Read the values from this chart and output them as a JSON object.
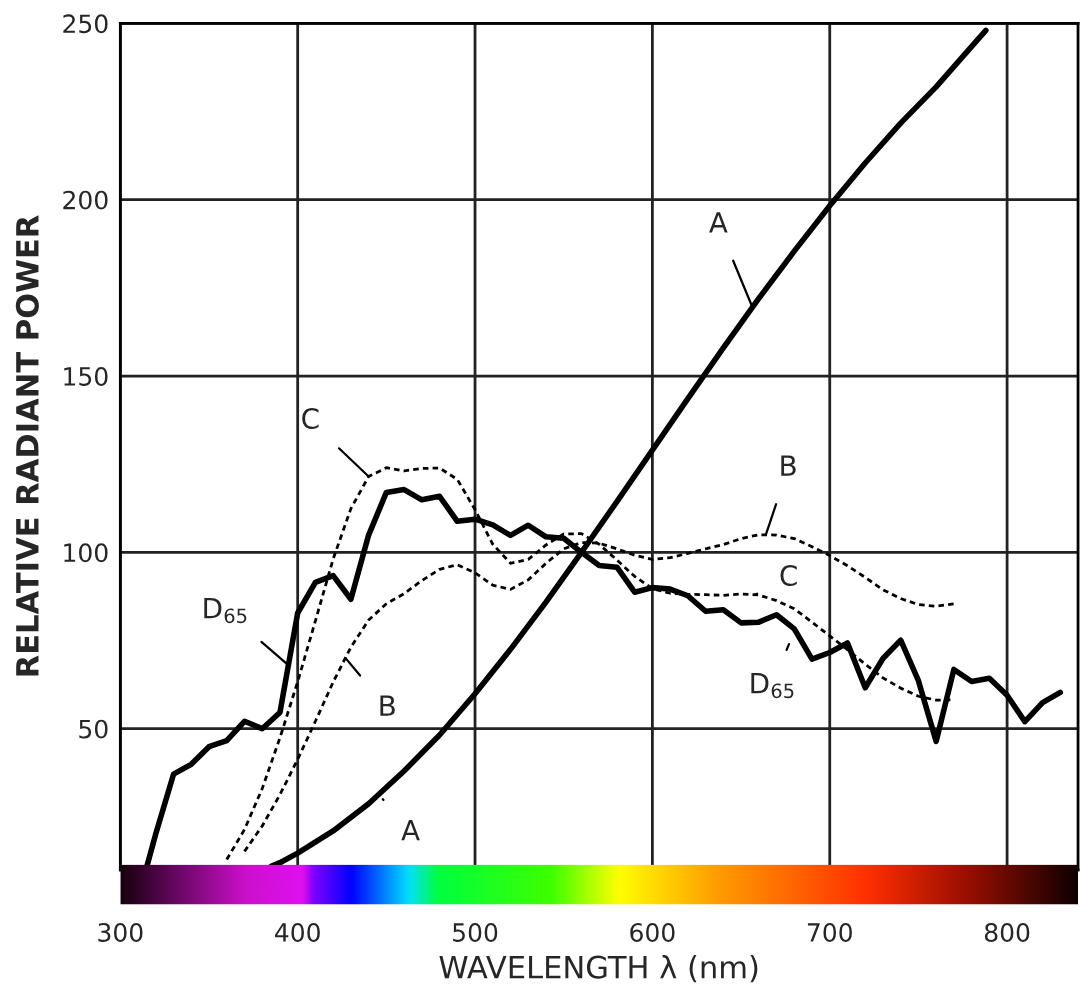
{
  "chart_data": {
    "type": "line",
    "xlabel": "WAVELENGTH λ (nm)",
    "ylabel": "RELATIVE RADIANT POWER",
    "xlim": [
      300,
      840
    ],
    "ylim": [
      10,
      250
    ],
    "xticks": [
      300,
      400,
      500,
      600,
      700,
      800
    ],
    "yticks": [
      50,
      100,
      150,
      200,
      250
    ],
    "grid": true,
    "legend": false,
    "marker": "none",
    "series": [
      {
        "color": "#000000",
        "line_style": "solid",
        "x": [
          385,
          390,
          400,
          420,
          440,
          460,
          480,
          500,
          520,
          540,
          560,
          580,
          600,
          620,
          640,
          660,
          680,
          700,
          720,
          740,
          760,
          788
        ],
        "values": [
          11,
          12,
          14.7,
          21,
          28.7,
          38,
          48.2,
          59.9,
          72.5,
          85.9,
          100,
          114.4,
          129,
          143.6,
          158,
          172,
          185.4,
          198.3,
          210.4,
          221.7,
          232,
          248
        ]
      },
      {
        "color": "#000000",
        "line_style": "dashed",
        "x": [
          370,
          380,
          390,
          400,
          410,
          420,
          430,
          440,
          450,
          460,
          470,
          480,
          490,
          500,
          510,
          520,
          530,
          540,
          550,
          560,
          570,
          580,
          590,
          600,
          610,
          620,
          630,
          640,
          650,
          660,
          670,
          680,
          690,
          700,
          710,
          720,
          730,
          740,
          750,
          760,
          770
        ],
        "values": [
          15.2,
          22.4,
          31.3,
          41.3,
          52.1,
          63.2,
          73.1,
          80.8,
          85.4,
          88.3,
          92,
          95.2,
          96.5,
          94.2,
          90.7,
          89.5,
          92.2,
          96.9,
          101,
          102.8,
          102.6,
          101,
          99.2,
          98,
          98.5,
          99.7,
          101,
          102.2,
          103.9,
          105,
          104.9,
          103.9,
          101.6,
          99.1,
          96.2,
          92.9,
          89.4,
          86.9,
          85.2,
          84.7,
          85.4
        ]
      },
      {
        "color": "#000000",
        "line_style": "dashed",
        "x": [
          360,
          370,
          380,
          390,
          400,
          410,
          420,
          430,
          440,
          450,
          460,
          470,
          480,
          490,
          500,
          510,
          520,
          530,
          540,
          550,
          560,
          570,
          580,
          590,
          600,
          610,
          620,
          630,
          640,
          650,
          660,
          670,
          680,
          690,
          700,
          710,
          720,
          730,
          740,
          750,
          760,
          770
        ],
        "values": [
          12.9,
          21.4,
          33,
          47.4,
          63.3,
          80.6,
          98.1,
          112.4,
          121.5,
          124,
          123.1,
          123.8,
          123.9,
          120.7,
          112.1,
          102.3,
          96.9,
          98,
          102.1,
          105.2,
          105.3,
          102.3,
          97.8,
          93.2,
          89.7,
          88.4,
          88.1,
          88,
          87.8,
          88.2,
          87.9,
          86.3,
          84,
          80.2,
          76.3,
          72.4,
          68.3,
          64.4,
          61.5,
          59.2,
          58.1,
          58.2
        ]
      },
      {
        "color": "#000000",
        "line_style": "solid",
        "x": [
          315,
          320,
          330,
          340,
          350,
          360,
          370,
          380,
          390,
          400,
          410,
          420,
          430,
          440,
          450,
          460,
          470,
          480,
          490,
          500,
          510,
          520,
          530,
          540,
          550,
          560,
          570,
          580,
          590,
          600,
          610,
          620,
          630,
          640,
          650,
          660,
          670,
          680,
          690,
          700,
          710,
          720,
          730,
          740,
          750,
          760,
          770,
          780,
          790,
          800,
          810,
          820,
          830
        ],
        "values": [
          11,
          20.2,
          37.1,
          39.9,
          44.9,
          46.6,
          52.1,
          50,
          54.6,
          82.8,
          91.5,
          93.4,
          86.7,
          104.9,
          117,
          117.8,
          114.9,
          115.9,
          108.8,
          109.4,
          107.8,
          104.8,
          107.7,
          104.4,
          104,
          100,
          96.3,
          95.8,
          88.7,
          90,
          89.6,
          87.7,
          83.3,
          83.7,
          80,
          80.2,
          82.3,
          78.3,
          69.7,
          71.6,
          74.3,
          61.6,
          69.9,
          75.1,
          63.6,
          46.4,
          66.8,
          63.4,
          64.3,
          59.5,
          52,
          57.4,
          60.3
        ]
      }
    ],
    "annotations": [
      {
        "text": "A",
        "x": 656,
        "y": 170
      },
      {
        "text": "A",
        "x": 448,
        "y": 30
      },
      {
        "text": "B",
        "x": 664,
        "y": 105
      },
      {
        "text": "B",
        "x": 427,
        "y": 70
      },
      {
        "text": "C",
        "x": 440,
        "y": 121.5
      },
      {
        "text": "C",
        "x": 658,
        "y": 88
      },
      {
        "text": "D$_{65}$",
        "x": 393.6,
        "y": 68.5
      },
      {
        "text": "D$_{65}$",
        "x": 677,
        "y": 74
      }
    ]
  }
}
